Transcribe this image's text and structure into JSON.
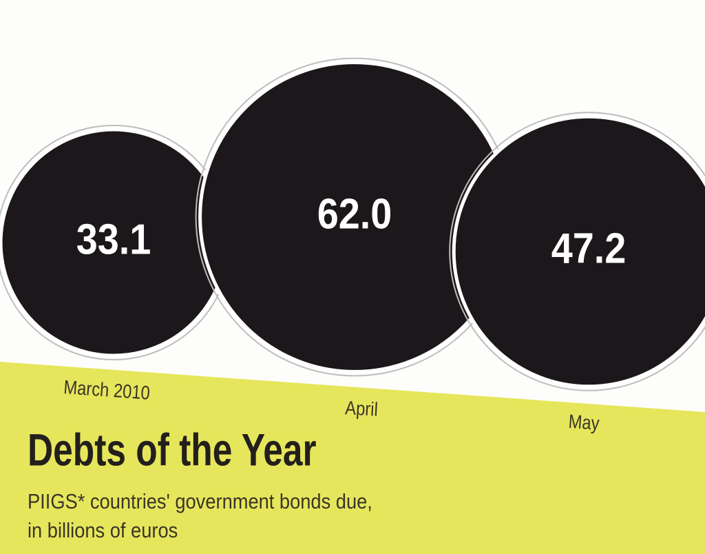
{
  "chart_data": {
    "type": "bubble",
    "title": "Debts of the Year",
    "subtitle": [
      "PIIGS* countries' government bonds due,",
      "in billions of euros"
    ],
    "categories": [
      "March 2010",
      "April",
      "May"
    ],
    "values": [
      33.1,
      62,
      47.2
    ],
    "value_labels": [
      "33.1",
      "62.0",
      "47.2"
    ],
    "color": "#1c171a"
  }
}
